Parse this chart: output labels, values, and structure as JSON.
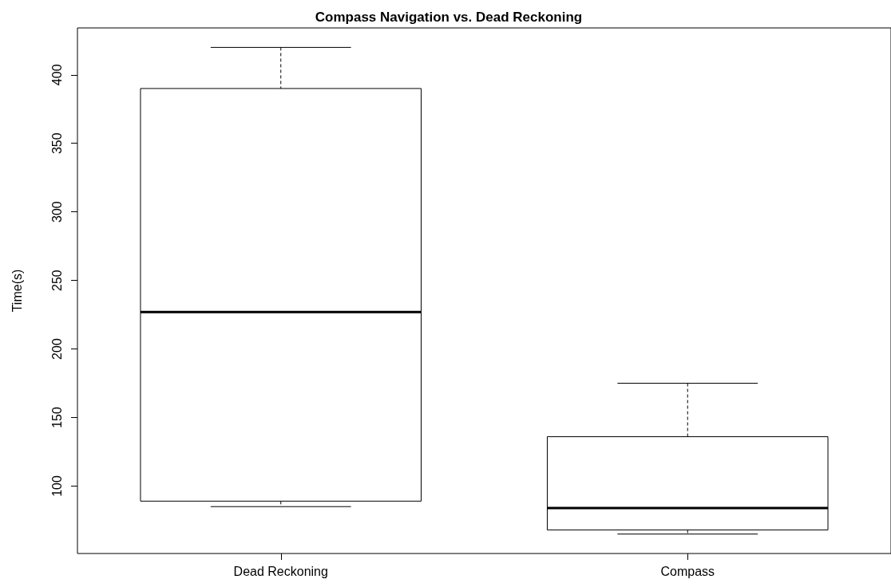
{
  "chart_data": {
    "type": "box",
    "title": "Compass Navigation vs. Dead Reckoning",
    "ylabel": "Time(s)",
    "categories": [
      "Dead Reckoning",
      "Compass"
    ],
    "boxes": [
      {
        "low": 85,
        "q1": 89,
        "median": 227,
        "q3": 390,
        "high": 420
      },
      {
        "low": 65,
        "q1": 68,
        "median": 84,
        "q3": 136,
        "high": 175
      }
    ],
    "ylim": [
      50.8,
      434.2
    ],
    "yticks": [
      100,
      150,
      200,
      250,
      300,
      350,
      400
    ]
  }
}
